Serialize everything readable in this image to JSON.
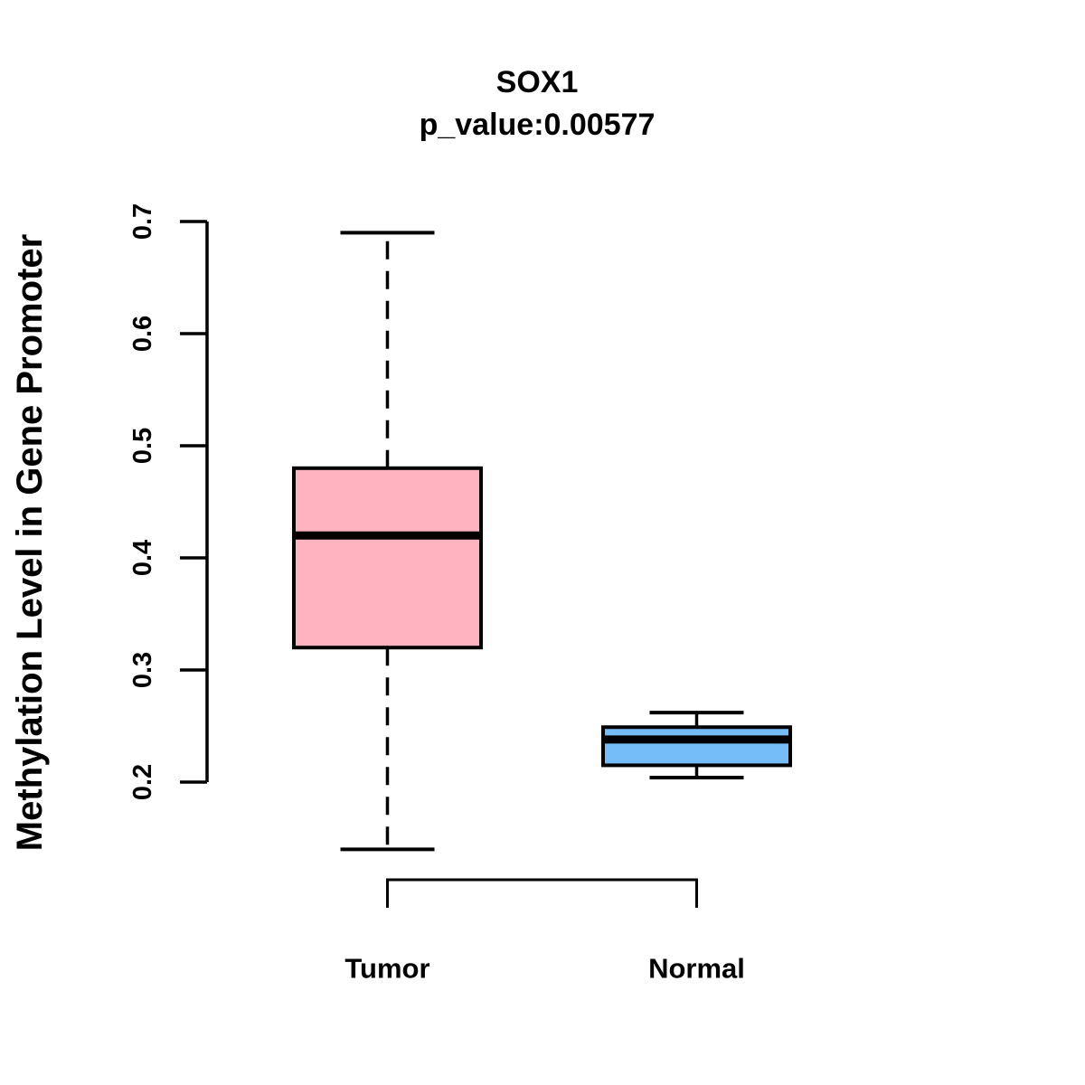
{
  "figure": {
    "background_color": "#ffffff",
    "stroke_color": "#000000"
  },
  "chart_data": {
    "type": "boxplot",
    "title": "SOX1",
    "subtitle": "p_value:0.00577",
    "ylabel": "Methylation Level in Gene Promoter",
    "xlabel": "",
    "categories": [
      "Tumor",
      "Normal"
    ],
    "y_axis": {
      "tick_values": [
        0.2,
        0.3,
        0.4,
        0.5,
        0.6,
        0.7
      ],
      "tick_labels": [
        "0.2",
        "0.3",
        "0.4",
        "0.5",
        "0.6",
        "0.7"
      ],
      "axis_range_shown": [
        0.2,
        0.7
      ]
    },
    "grid": false,
    "legend": "none",
    "series": [
      {
        "name": "Tumor",
        "fill_color": "#FFB3C1",
        "stats": {
          "whisker_low": 0.14,
          "q1": 0.32,
          "median": 0.42,
          "q3": 0.48,
          "whisker_high": 0.69
        }
      },
      {
        "name": "Normal",
        "fill_color": "#75BDF8",
        "stats": {
          "whisker_low": 0.204,
          "q1": 0.215,
          "median": 0.238,
          "q3": 0.249,
          "whisker_high": 0.262
        }
      }
    ]
  }
}
